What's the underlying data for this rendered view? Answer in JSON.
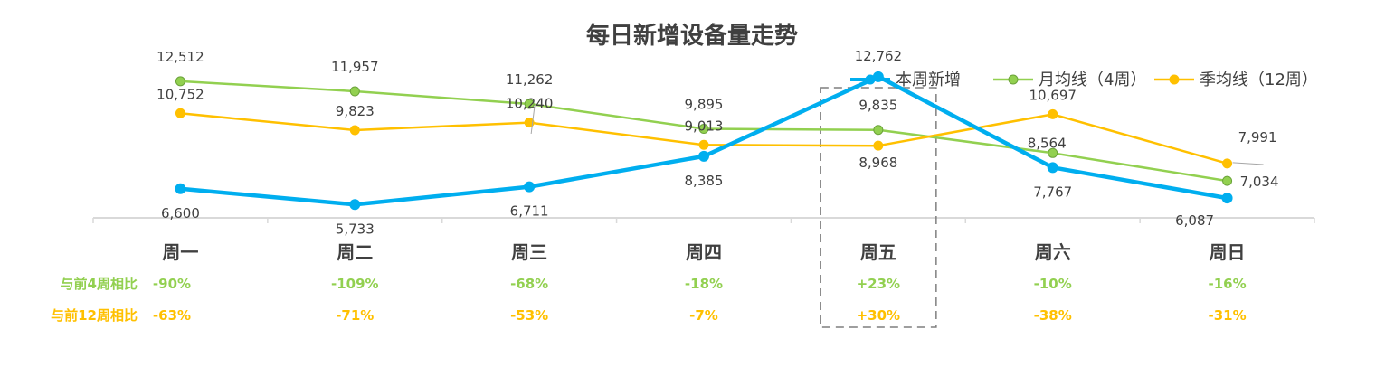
{
  "chart_data": {
    "type": "line",
    "title": "每日新增设备量走势",
    "categories": [
      "周一",
      "周二",
      "周三",
      "周四",
      "周五",
      "周六",
      "周日"
    ],
    "highlight_category": "周五",
    "legend_position": "top-right",
    "grid": false,
    "ylim": [
      5000,
      13500
    ],
    "series": [
      {
        "name": "本周新增",
        "color": "#00AEEF",
        "values": [
          6600,
          5733,
          6711,
          8385,
          12762,
          7767,
          6087
        ],
        "labels": [
          "6,600",
          "5,733",
          "6,711",
          "8,385",
          "12,762",
          "7,767",
          "6,087"
        ]
      },
      {
        "name": "月均线（4周）",
        "color": "#92D050",
        "values": [
          12512,
          11957,
          11262,
          9895,
          9835,
          8564,
          7034
        ],
        "labels": [
          "12,512",
          "11,957",
          "11,262",
          "9,895",
          "9,835",
          "8,564",
          "7,034"
        ]
      },
      {
        "name": "季均线（12周）",
        "color": "#FFC000",
        "values": [
          10752,
          9823,
          10240,
          9013,
          8968,
          10697,
          7991
        ],
        "labels": [
          "10,752",
          "9,823",
          "10,240",
          "9,013",
          "8,968",
          "10,697",
          "7,991"
        ]
      }
    ],
    "comparisons": [
      {
        "label": "与前4周相比",
        "color": "#92D050",
        "values": [
          "-90%",
          "-109%",
          "-68%",
          "-18%",
          "+23%",
          "-10%",
          "-16%"
        ]
      },
      {
        "label": "与前12周相比",
        "color": "#FFC000",
        "values": [
          "-63%",
          "-71%",
          "-53%",
          "-7%",
          "+30%",
          "-38%",
          "-31%"
        ]
      }
    ]
  }
}
